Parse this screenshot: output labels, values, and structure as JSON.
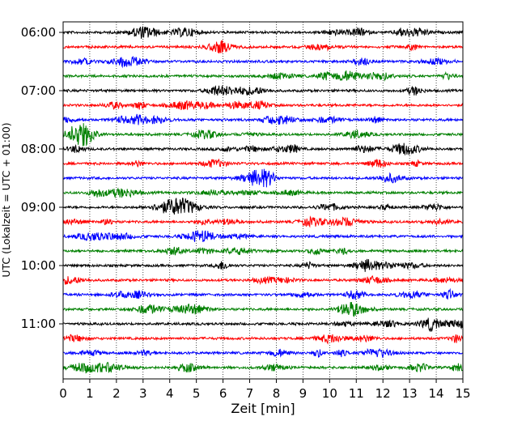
{
  "chart_data": {
    "type": "line",
    "subtype": "dayplot-seismogram",
    "title": "",
    "xlabel": "Zeit  [min]",
    "ylabel": "UTC (Lokalzeit = UTC + 01:00)",
    "xlim": [
      0,
      15
    ],
    "x_ticks": [
      "0",
      "1",
      "2",
      "3",
      "4",
      "5",
      "6",
      "7",
      "8",
      "9",
      "10",
      "11",
      "12",
      "13",
      "14",
      "15"
    ],
    "y_tick_labels": [
      "06:00",
      "07:00",
      "08:00",
      "09:00",
      "10:00",
      "11:00"
    ],
    "trace_start_times": [
      "06:00",
      "06:15",
      "06:30",
      "06:45",
      "07:00",
      "07:15",
      "07:30",
      "07:45",
      "08:00",
      "08:15",
      "08:30",
      "08:45",
      "09:00",
      "09:15",
      "09:30",
      "09:45",
      "10:00",
      "10:15",
      "10:30",
      "10:45",
      "11:00",
      "11:15",
      "11:30",
      "11:45"
    ],
    "trace_colors": [
      "#000000",
      "#ff0000",
      "#0000ff",
      "#008000"
    ],
    "grid": "vertical dotted lines at each minute"
  }
}
